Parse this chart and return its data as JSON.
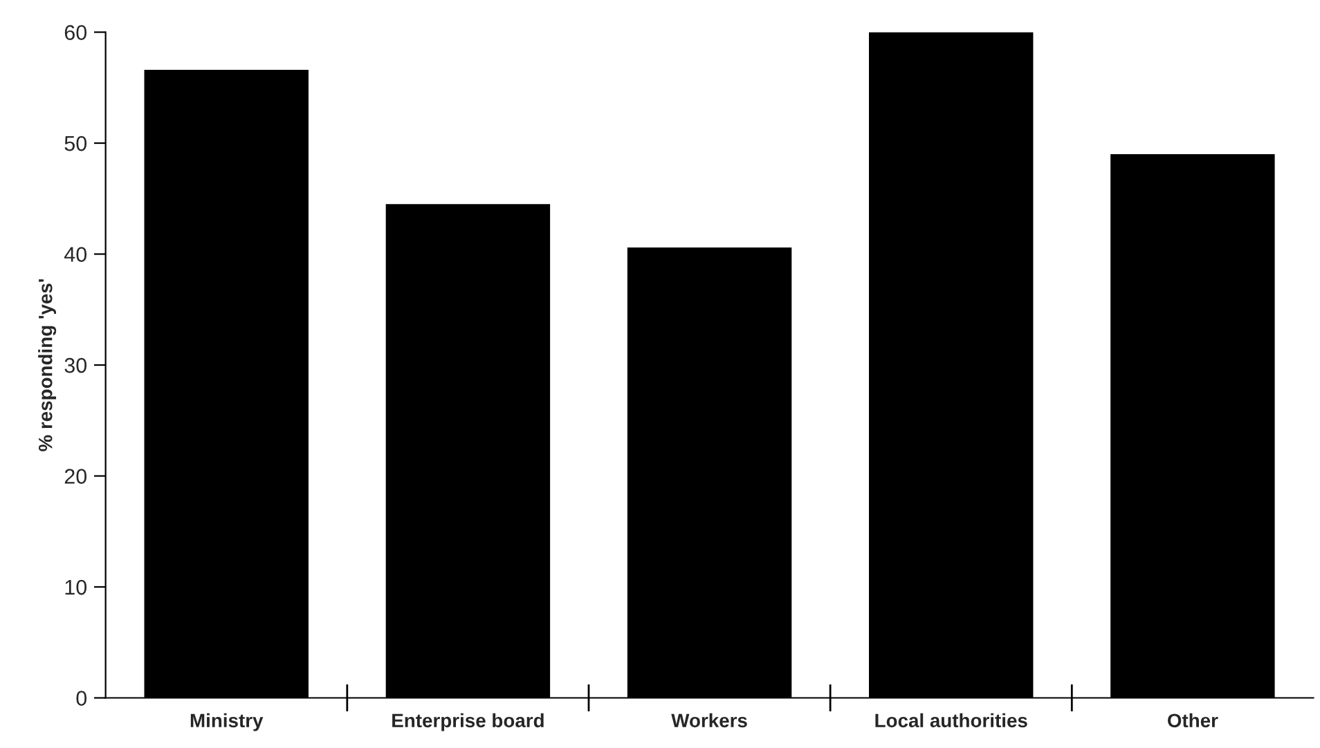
{
  "chart_data": {
    "type": "bar",
    "ylabel": "% responding 'yes'",
    "categories": [
      "Ministry",
      "Enterprise board",
      "Workers",
      "Local authorities",
      "Other"
    ],
    "values": [
      56.6,
      44.5,
      40.6,
      60,
      49
    ],
    "color": "#000000",
    "ylim": [
      0,
      60
    ],
    "yticks": [
      0,
      10,
      20,
      30,
      40,
      50,
      60
    ],
    "grid": false
  }
}
